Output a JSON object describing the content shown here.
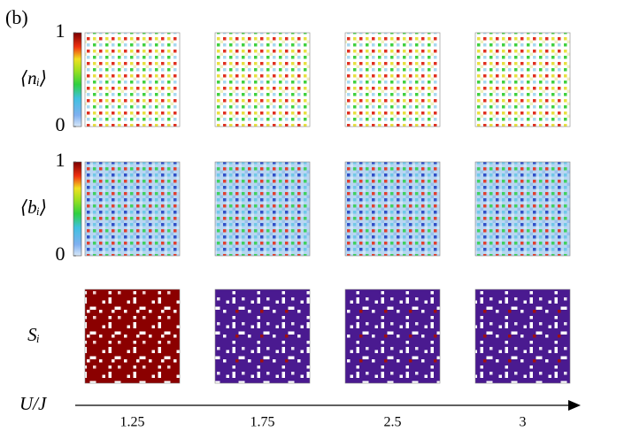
{
  "panel_label": "(b)",
  "rows": [
    {
      "label": "⟨nᵢ⟩",
      "cbar_ticks": [
        0,
        1
      ]
    },
    {
      "label": "⟨bᵢ⟩",
      "cbar_ticks": [
        0,
        1
      ]
    },
    {
      "label": "Sᵢ"
    }
  ],
  "x_axis": {
    "label": "U/J",
    "ticks": [
      1.25,
      1.75,
      2.5,
      3
    ]
  }
}
